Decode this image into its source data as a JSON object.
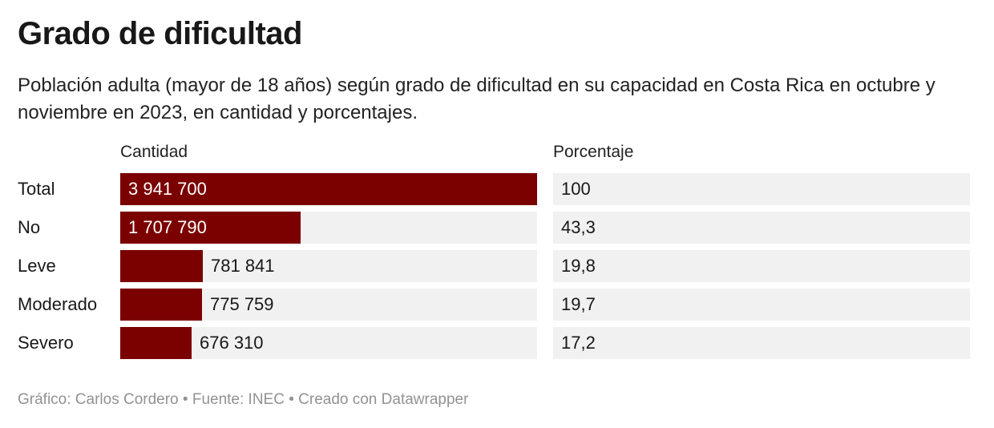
{
  "title": "Grado de dificultad",
  "subtitle": "Población adulta (mayor de 18 años) según grado de dificultad en su capacidad en Costa Rica en octubre y noviembre en 2023, en cantidad y porcentajes.",
  "footer": "Gráfico: Carlos Cordero • Fuente: INEC • Creado con Datawrapper",
  "colors": {
    "bar": "#7b0000",
    "track": "#f1f1f1"
  },
  "chart_data": {
    "type": "bar",
    "columns": [
      "Cantidad",
      "Porcentaje"
    ],
    "categories": [
      "Total",
      "No",
      "Leve",
      "Moderado",
      "Severo"
    ],
    "series": [
      {
        "name": "Cantidad",
        "values": [
          3941700,
          1707790,
          781841,
          775759,
          676310
        ],
        "labels": [
          "3 941 700",
          "1 707 790",
          "781 841",
          "775 759",
          "676 310"
        ]
      },
      {
        "name": "Porcentaje",
        "values": [
          100,
          43.3,
          19.8,
          19.7,
          17.2
        ],
        "labels": [
          "100",
          "43,3",
          "19,8",
          "19,7",
          "17,2"
        ]
      }
    ],
    "xlim": [
      0,
      3941700
    ]
  }
}
